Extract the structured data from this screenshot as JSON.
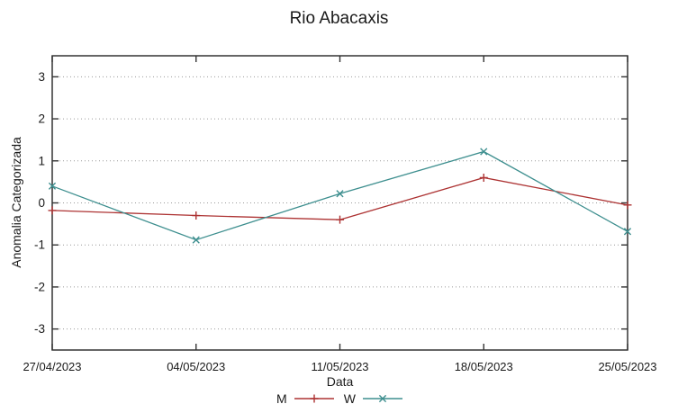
{
  "chart_data": {
    "type": "line",
    "title": "Rio Abacaxis",
    "xlabel": "Data",
    "ylabel": "Anomalia Categorizada",
    "categories": [
      "27/04/2023",
      "04/05/2023",
      "11/05/2023",
      "18/05/2023",
      "25/05/2023"
    ],
    "series": [
      {
        "name": "M",
        "color": "#ad3333",
        "marker": "plus",
        "values": [
          -0.18,
          -0.3,
          -0.4,
          0.6,
          -0.05
        ]
      },
      {
        "name": "W",
        "color": "#3e8f8f",
        "marker": "cross",
        "values": [
          0.4,
          -0.88,
          0.22,
          1.22,
          -0.68
        ]
      }
    ],
    "yticks": [
      3,
      2,
      1,
      0,
      -1,
      -2,
      -3
    ],
    "ylim": [
      -3.5,
      3.5
    ],
    "grid": "horizontal-dotted",
    "legend_position": "bottom-center",
    "colors": {
      "background": "#ffffff",
      "border": "#333333",
      "gridline": "#9a9a9a",
      "text": "#1a1a1a"
    }
  }
}
